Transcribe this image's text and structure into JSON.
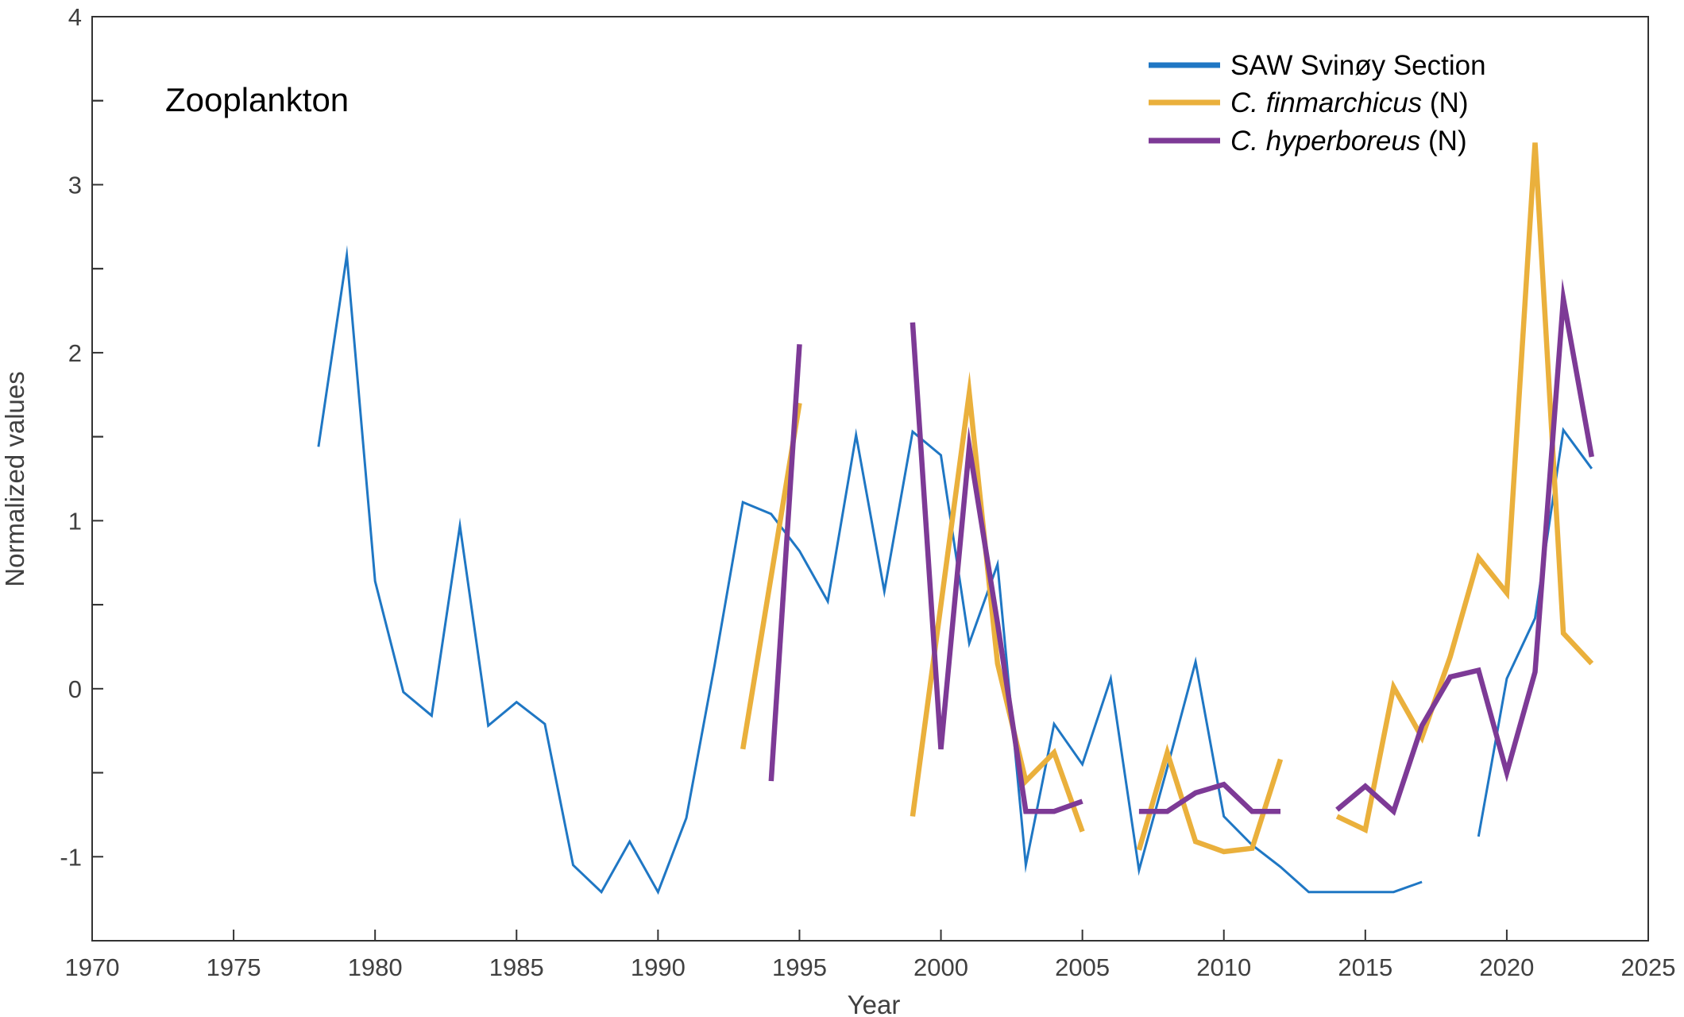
{
  "chart_data": {
    "type": "line",
    "panel_label": "Zooplankton",
    "xlabel": "Year",
    "ylabel": "Normalized values",
    "xlim": [
      1970,
      2025
    ],
    "ylim": [
      -1.5,
      4
    ],
    "x_ticks": [
      "1970",
      "1975",
      "1980",
      "1985",
      "1990",
      "1995",
      "2000",
      "2005",
      "2010",
      "2015",
      "2020",
      "2025"
    ],
    "y_ticks": [
      "-1",
      "0",
      "1",
      "2",
      "3",
      "4"
    ],
    "legend_position": "top-right",
    "series": [
      {
        "name": "SAW Svinøy Section",
        "name_italic": "",
        "name_suffix": "SAW Svinøy Section",
        "color": "#1f77c4",
        "width": "thin",
        "segments": [
          [
            [
              1978,
              1.44
            ],
            [
              1979,
              2.58
            ],
            [
              1980,
              0.64
            ],
            [
              1981,
              -0.02
            ],
            [
              1982,
              -0.16
            ],
            [
              1983,
              0.97
            ],
            [
              1984,
              -0.22
            ],
            [
              1985,
              -0.08
            ],
            [
              1986,
              -0.21
            ],
            [
              1987,
              -1.05
            ],
            [
              1988,
              -1.21
            ],
            [
              1989,
              -0.91
            ],
            [
              1990,
              -1.21
            ],
            [
              1991,
              -0.77
            ],
            [
              1992,
              0.14
            ],
            [
              1993,
              1.11
            ],
            [
              1994,
              1.04
            ],
            [
              1995,
              0.82
            ],
            [
              1996,
              0.52
            ],
            [
              1997,
              1.51
            ],
            [
              1998,
              0.58
            ],
            [
              1999,
              1.53
            ],
            [
              2000,
              1.39
            ],
            [
              2001,
              0.27
            ],
            [
              2002,
              0.74
            ],
            [
              2003,
              -1.05
            ],
            [
              2004,
              -0.21
            ],
            [
              2005,
              -0.45
            ],
            [
              2006,
              0.06
            ],
            [
              2007,
              -1.08
            ],
            [
              2008,
              -0.47
            ],
            [
              2009,
              0.16
            ],
            [
              2010,
              -0.76
            ],
            [
              2011,
              -0.93
            ],
            [
              2012,
              -1.06
            ],
            [
              2013,
              -1.21
            ],
            [
              2014,
              -1.21
            ],
            [
              2015,
              -1.21
            ],
            [
              2016,
              -1.21
            ],
            [
              2017,
              -1.15
            ]
          ],
          [
            [
              2019,
              -0.88
            ],
            [
              2020,
              0.06
            ],
            [
              2021,
              0.42
            ],
            [
              2022,
              1.54
            ],
            [
              2023,
              1.31
            ]
          ]
        ]
      },
      {
        "name": "C. finmarchicus (N)",
        "name_italic": "C. finmarchicus",
        "name_suffix": " (N)",
        "color": "#eab03c",
        "width": "thick",
        "segments": [
          [
            [
              1993,
              -0.36
            ],
            [
              1995,
              1.7
            ]
          ],
          [
            [
              1999,
              -0.76
            ],
            [
              2001,
              1.76
            ],
            [
              2002,
              0.15
            ],
            [
              2003,
              -0.55
            ],
            [
              2004,
              -0.38
            ],
            [
              2005,
              -0.85
            ]
          ],
          [
            [
              2007,
              -0.96
            ],
            [
              2008,
              -0.38
            ],
            [
              2009,
              -0.91
            ],
            [
              2010,
              -0.97
            ],
            [
              2011,
              -0.95
            ],
            [
              2012,
              -0.42
            ]
          ],
          [
            [
              2014,
              -0.76
            ],
            [
              2015,
              -0.84
            ],
            [
              2016,
              0.01
            ],
            [
              2017,
              -0.29
            ],
            [
              2018,
              0.19
            ],
            [
              2019,
              0.78
            ],
            [
              2020,
              0.57
            ],
            [
              2021,
              3.25
            ],
            [
              2022,
              0.33
            ],
            [
              2023,
              0.15
            ]
          ]
        ]
      },
      {
        "name": "C. hyperboreus (N)",
        "name_italic": "C. hyperboreus",
        "name_suffix": " (N)",
        "color": "#7d3a96",
        "width": "thick",
        "segments": [
          [
            [
              1994,
              -0.55
            ],
            [
              1995,
              2.05
            ]
          ],
          [
            [
              1999,
              2.18
            ],
            [
              2000,
              -0.36
            ],
            [
              2001,
              1.44
            ],
            [
              2002,
              0.39
            ],
            [
              2003,
              -0.73
            ],
            [
              2004,
              -0.73
            ],
            [
              2005,
              -0.67
            ]
          ],
          [
            [
              2007,
              -0.73
            ],
            [
              2008,
              -0.73
            ],
            [
              2009,
              -0.62
            ],
            [
              2010,
              -0.57
            ],
            [
              2011,
              -0.73
            ],
            [
              2012,
              -0.73
            ]
          ],
          [
            [
              2014,
              -0.72
            ],
            [
              2015,
              -0.58
            ],
            [
              2016,
              -0.73
            ],
            [
              2017,
              -0.22
            ],
            [
              2018,
              0.07
            ],
            [
              2019,
              0.11
            ],
            [
              2020,
              -0.5
            ],
            [
              2021,
              0.1
            ],
            [
              2022,
              2.32
            ],
            [
              2023,
              1.38
            ]
          ]
        ]
      }
    ]
  }
}
